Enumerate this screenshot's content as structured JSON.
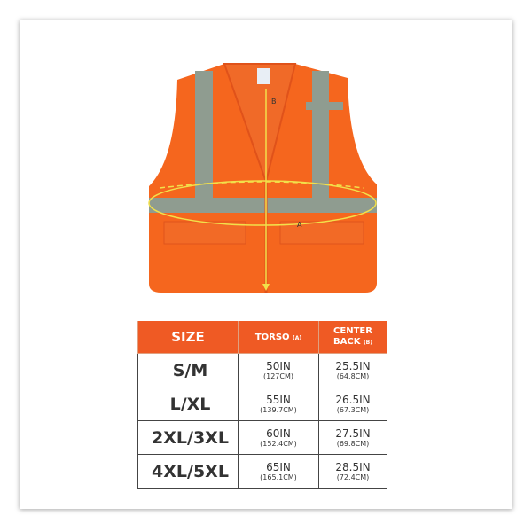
{
  "colors": {
    "vest": "#f5661e",
    "reflective": "#8f9c90",
    "header": "#ef5a24",
    "measure_line": "#f2e04a"
  },
  "diagram": {
    "label_b": "B",
    "label_a": "A"
  },
  "table": {
    "headers": {
      "size": "SIZE",
      "torso": "TORSO",
      "torso_tag": "(A)",
      "back_line1": "CENTER",
      "back_line2": "BACK",
      "back_tag": "(B)"
    },
    "rows": [
      {
        "size": "S/M",
        "torso_in": "50IN",
        "torso_cm": "(127CM)",
        "back_in": "25.5IN",
        "back_cm": "(64.8CM)"
      },
      {
        "size": "L/XL",
        "torso_in": "55IN",
        "torso_cm": "(139.7CM)",
        "back_in": "26.5IN",
        "back_cm": "(67.3CM)"
      },
      {
        "size": "2XL/3XL",
        "torso_in": "60IN",
        "torso_cm": "(152.4CM)",
        "back_in": "27.5IN",
        "back_cm": "(69.8CM)"
      },
      {
        "size": "4XL/5XL",
        "torso_in": "65IN",
        "torso_cm": "(165.1CM)",
        "back_in": "28.5IN",
        "back_cm": "(72.4CM)"
      }
    ]
  }
}
